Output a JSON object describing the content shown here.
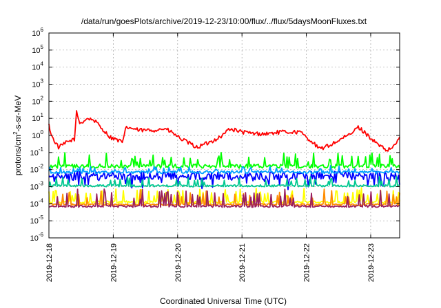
{
  "chart_data": {
    "type": "line",
    "title": "/data/run/goesPlots/archive/2019-12-23/10:00/flux/../flux/5daysMoonFluxes.txt",
    "xlabel": "Coordinated Universal Time (UTC)",
    "ylabel": {
      "base": "protons/cm",
      "exp": "2",
      "rest": "-s-sr-MeV"
    },
    "x_range_days": [
      0,
      5.45
    ],
    "x_ticks": [
      {
        "label": "2019-12-18",
        "day": 0
      },
      {
        "label": "2019-12-19",
        "day": 1
      },
      {
        "label": "2019-12-20",
        "day": 2
      },
      {
        "label": "2019-12-21",
        "day": 3
      },
      {
        "label": "2019-12-22",
        "day": 4
      },
      {
        "label": "2019-12-23",
        "day": 5
      }
    ],
    "y_scale": "log",
    "y_range": [
      -6,
      6
    ],
    "y_ticks": [
      {
        "base": "10",
        "exp": "-6",
        "log": -6
      },
      {
        "base": "10",
        "exp": "-5",
        "log": -5
      },
      {
        "base": "10",
        "exp": "-4",
        "log": -4
      },
      {
        "base": "10",
        "exp": "-3",
        "log": -3
      },
      {
        "base": "10",
        "exp": "-2",
        "log": -2
      },
      {
        "base": "10",
        "exp": "-1",
        "log": -1
      },
      {
        "base": "10",
        "exp": "0",
        "log": 0
      },
      {
        "base": "10",
        "exp": "1",
        "log": 1
      },
      {
        "base": "10",
        "exp": "2",
        "log": 2
      },
      {
        "base": "10",
        "exp": "3",
        "log": 3
      },
      {
        "base": "10",
        "exp": "4",
        "log": 4
      },
      {
        "base": "10",
        "exp": "5",
        "log": 5
      },
      {
        "base": "10",
        "exp": "6",
        "log": 6
      }
    ],
    "grid": true,
    "series": [
      {
        "color": "#ff0000",
        "base_log": 0.05,
        "noise": 0.12,
        "spikes": 0.0,
        "keypoints": [
          [
            0,
            0.6
          ],
          [
            0.05,
            -0.1
          ],
          [
            0.15,
            -0.7
          ],
          [
            0.28,
            -0.4
          ],
          [
            0.4,
            -0.2
          ],
          [
            0.43,
            1.4
          ],
          [
            0.48,
            0.7
          ],
          [
            0.6,
            1.0
          ],
          [
            0.7,
            0.9
          ],
          [
            0.85,
            0.3
          ],
          [
            0.95,
            -0.1
          ],
          [
            1.02,
            -0.2
          ],
          [
            1.15,
            -0.4
          ],
          [
            1.2,
            0.5
          ],
          [
            1.4,
            0.3
          ],
          [
            1.6,
            0.3
          ],
          [
            1.8,
            0.4
          ],
          [
            1.9,
            0.2
          ],
          [
            2.05,
            -0.2
          ],
          [
            2.3,
            -0.7
          ],
          [
            2.5,
            -0.4
          ],
          [
            2.7,
            0.0
          ],
          [
            2.8,
            0.4
          ],
          [
            3.0,
            0.2
          ],
          [
            3.2,
            0.1
          ],
          [
            3.4,
            0.1
          ],
          [
            3.6,
            0.2
          ],
          [
            3.9,
            0.2
          ],
          [
            4.1,
            -0.4
          ],
          [
            4.2,
            -0.8
          ],
          [
            4.35,
            -0.6
          ],
          [
            4.5,
            -0.3
          ],
          [
            4.7,
            0.1
          ],
          [
            4.8,
            0.5
          ],
          [
            4.9,
            0.2
          ],
          [
            5.1,
            -0.5
          ],
          [
            5.25,
            -0.9
          ],
          [
            5.35,
            -0.7
          ],
          [
            5.45,
            -0.1
          ]
        ]
      },
      {
        "color": "#00ff00",
        "base_log": -1.8,
        "noise": 0.12,
        "spikes": 0.7,
        "keypoints": []
      },
      {
        "color": "#0000ff",
        "base_log": -2.35,
        "noise": 0.25,
        "spikes": -0.55,
        "keypoints": []
      },
      {
        "color": "#00a0ff",
        "base_log": -2.15,
        "noise": 0.08,
        "spikes": 0.3,
        "keypoints": []
      },
      {
        "color": "#00c890",
        "base_log": -2.95,
        "noise": 0.06,
        "spikes": 0.45,
        "keypoints": []
      },
      {
        "color": "#ffff00",
        "base_log": -3.9,
        "noise": 0.07,
        "spikes": 0.7,
        "keypoints": []
      },
      {
        "color": "#ff8c00",
        "base_log": -4.05,
        "noise": 0.06,
        "spikes": 0.8,
        "keypoints": []
      },
      {
        "color": "#9a1e5c",
        "base_log": -4.15,
        "noise": 0.06,
        "spikes": 0.9,
        "keypoints": []
      }
    ]
  }
}
